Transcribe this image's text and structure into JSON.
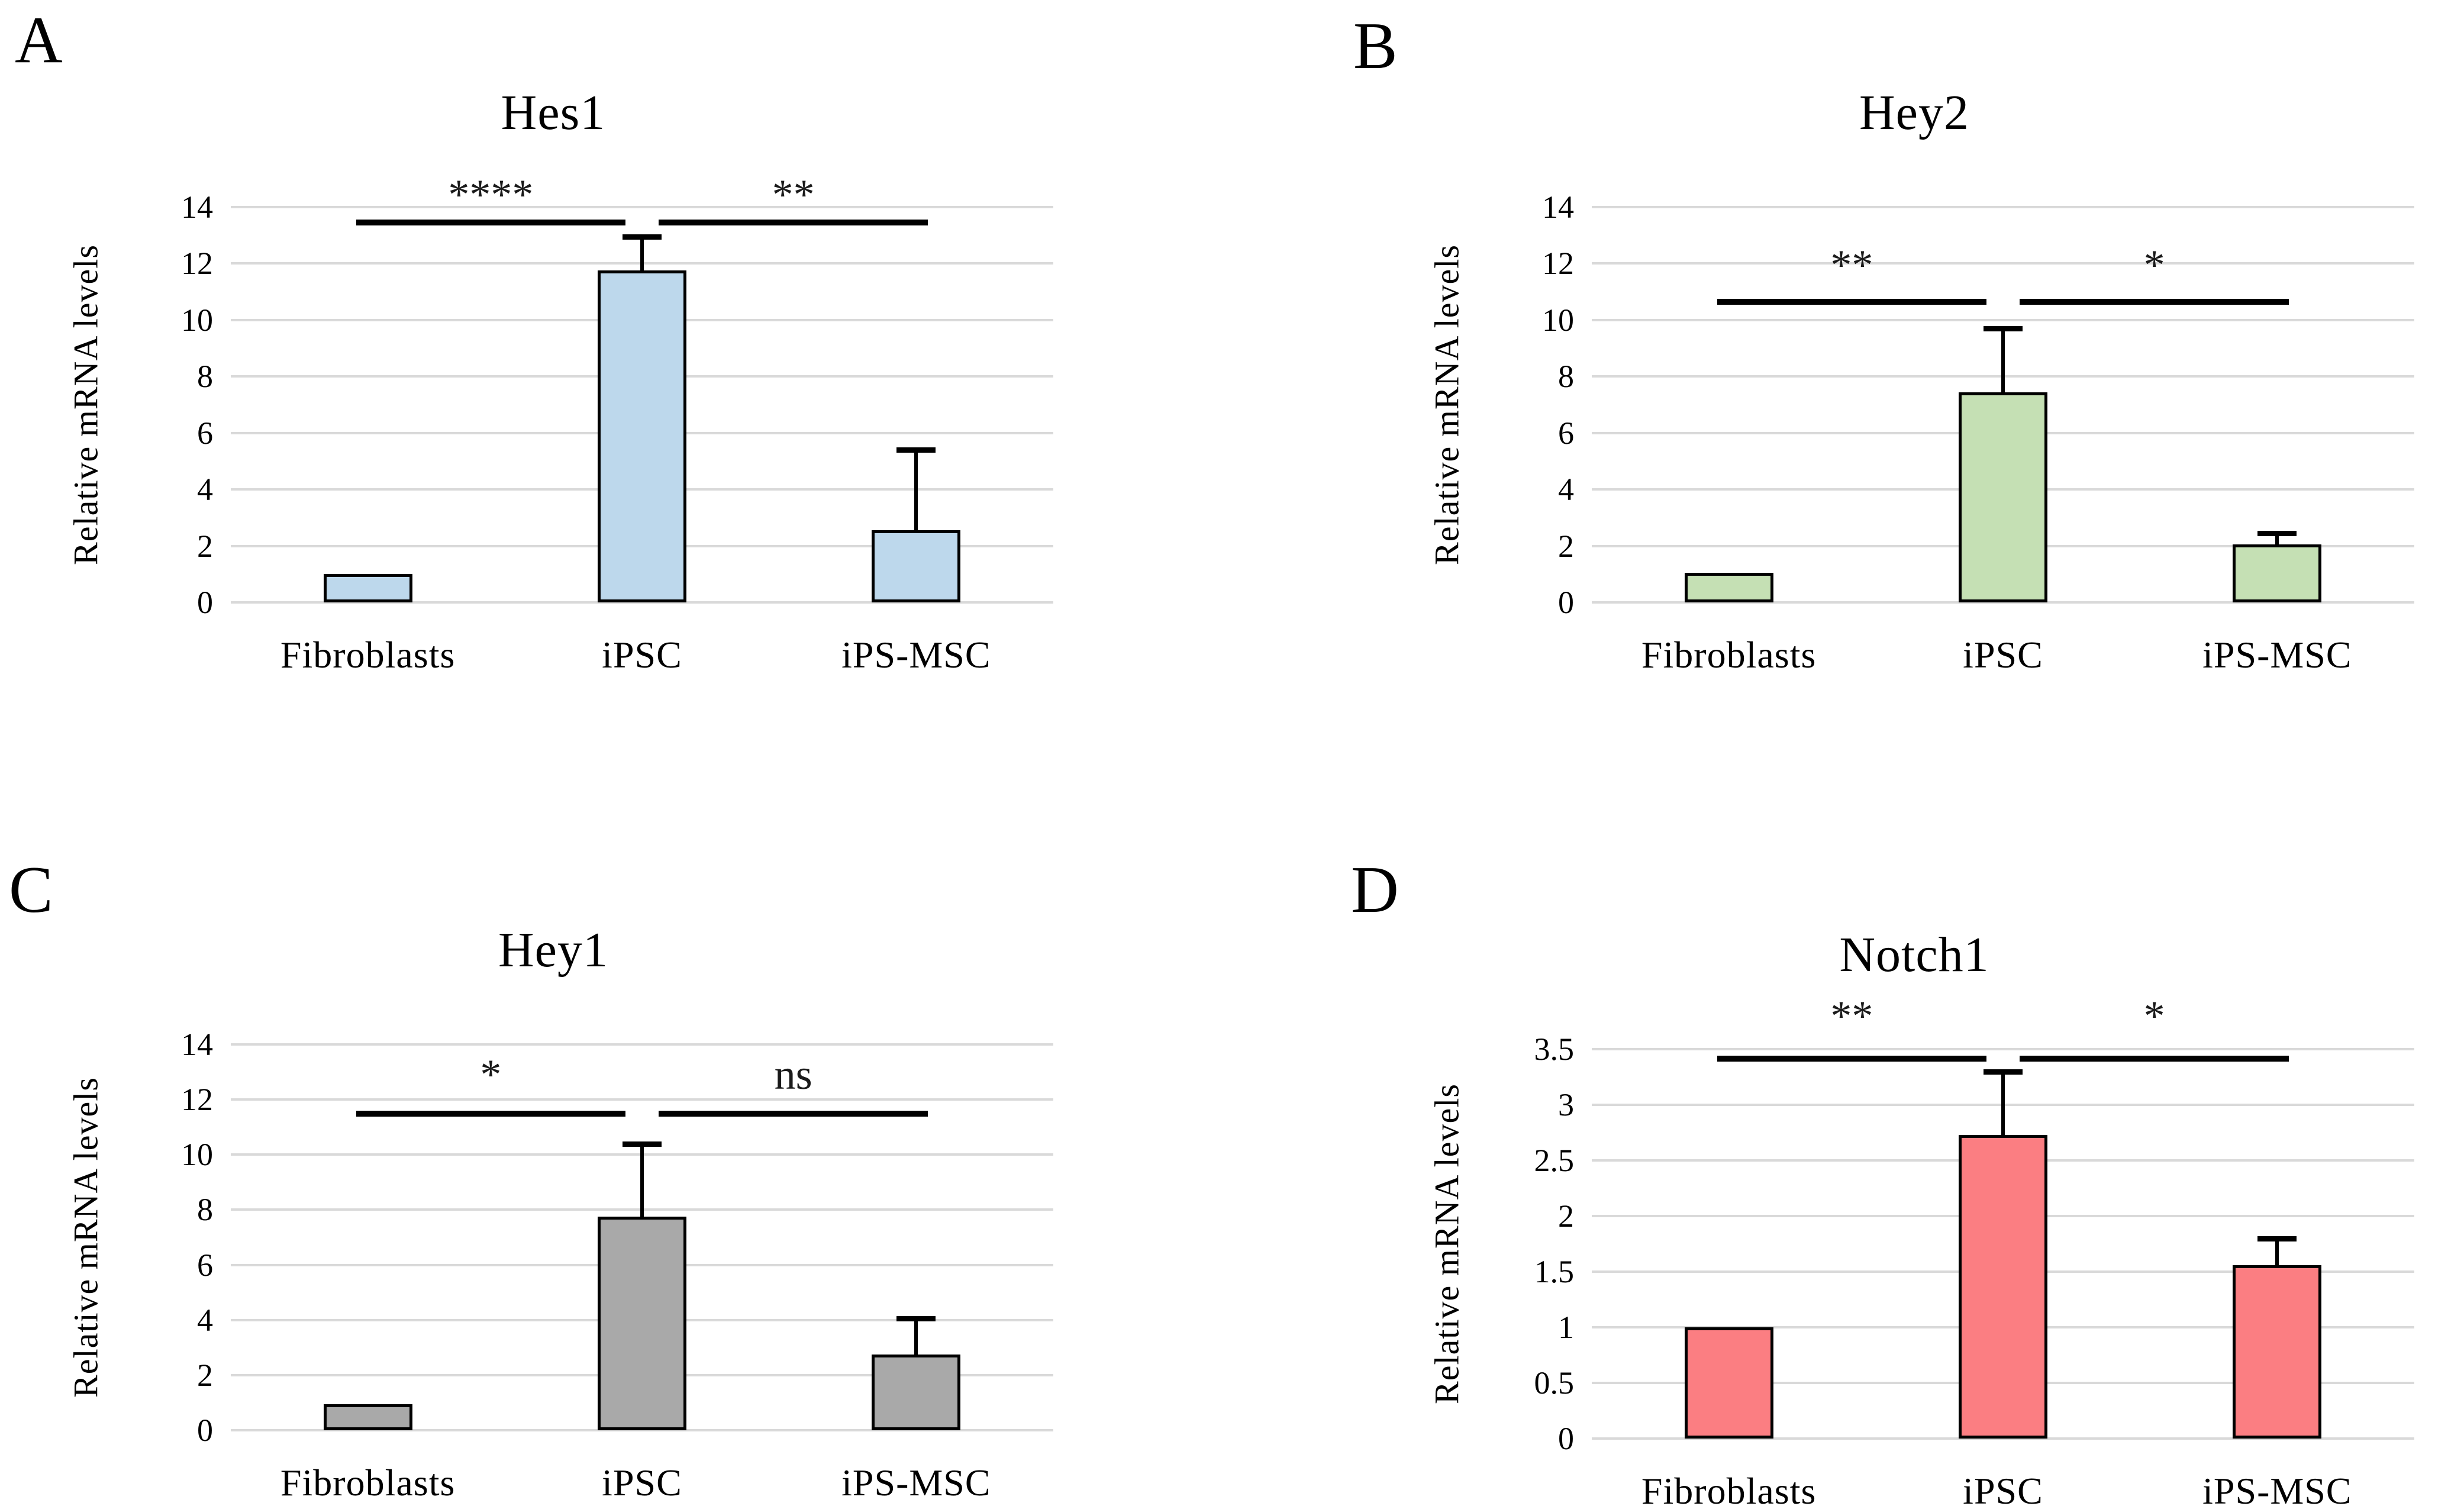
{
  "figure": {
    "description_visible_text_only": "Four qPCR bar chart panels",
    "background_color": "#FFFFFF",
    "gridline_color": "#D9D9D9",
    "error_bar_color": "#000000"
  },
  "chart_data": [
    {
      "type": "bar",
      "panel_letter": "A",
      "title": "Hes1",
      "ylabel": "Relative mRNA levels",
      "categories": [
        "Fibroblasts",
        "iPSC",
        "iPS-MSC"
      ],
      "values": [
        1.0,
        11.75,
        2.55
      ],
      "errors_plus": [
        0,
        1.2,
        2.85
      ],
      "ylim": [
        0,
        14
      ],
      "ytick_step": 2,
      "ytick_labels": [
        "0",
        "2",
        "4",
        "6",
        "8",
        "10",
        "12",
        "14"
      ],
      "grid": "horizontal",
      "legend": "none",
      "bar_color": "#BDD8EC",
      "bar_border_color": "#000000",
      "significance": [
        {
          "pair": [
            "Fibroblasts",
            "iPSC"
          ],
          "label": "****"
        },
        {
          "pair": [
            "iPSC",
            "iPS-MSC"
          ],
          "label": "**"
        }
      ],
      "sig_line_value": 13.55,
      "sig_label_value": 14.45
    },
    {
      "type": "bar",
      "panel_letter": "B",
      "title": "Hey2",
      "ylabel": "Relative mRNA levels",
      "categories": [
        "Fibroblasts",
        "iPSC",
        "iPS-MSC"
      ],
      "values": [
        1.05,
        7.45,
        2.05
      ],
      "errors_plus": [
        0,
        2.25,
        0.4
      ],
      "ylim": [
        0,
        14
      ],
      "ytick_step": 2,
      "ytick_labels": [
        "0",
        "2",
        "4",
        "6",
        "8",
        "10",
        "12",
        "14"
      ],
      "grid": "horizontal",
      "legend": "none",
      "bar_color": "#C5E0B4",
      "bar_border_color": "#000000",
      "significance": [
        {
          "pair": [
            "Fibroblasts",
            "iPSC"
          ],
          "label": "**"
        },
        {
          "pair": [
            "iPSC",
            "iPS-MSC"
          ],
          "label": "*"
        }
      ],
      "sig_line_value": 10.75,
      "sig_label_value": 11.95
    },
    {
      "type": "bar",
      "panel_letter": "C",
      "title": "Hey1",
      "ylabel": "Relative mRNA levels",
      "categories": [
        "Fibroblasts",
        "iPSC",
        "iPS-MSC"
      ],
      "values": [
        0.95,
        7.75,
        2.75
      ],
      "errors_plus": [
        0,
        2.65,
        1.3
      ],
      "ylim": [
        0,
        14
      ],
      "ytick_step": 2,
      "ytick_labels": [
        "0",
        "2",
        "4",
        "6",
        "8",
        "10",
        "12",
        "14"
      ],
      "grid": "horizontal",
      "legend": "none",
      "bar_color": "#A9A9A9",
      "bar_border_color": "#000000",
      "significance": [
        {
          "pair": [
            "Fibroblasts",
            "iPSC"
          ],
          "label": "*"
        },
        {
          "pair": [
            "iPSC",
            "iPS-MSC"
          ],
          "label": "ns"
        }
      ],
      "sig_line_value": 11.6,
      "sig_label_value": 12.9
    },
    {
      "type": "bar",
      "panel_letter": "D",
      "title": "Notch1",
      "ylabel": "Relative mRNA levels",
      "categories": [
        "Fibroblasts",
        "iPSC",
        "iPS-MSC"
      ],
      "values": [
        1.0,
        2.73,
        1.56
      ],
      "errors_plus": [
        0,
        0.57,
        0.24
      ],
      "ylim": [
        0,
        3.5
      ],
      "ytick_step": 0.5,
      "ytick_labels": [
        "0",
        "0.5",
        "1",
        "1.5",
        "2",
        "2.5",
        "3",
        "3.5"
      ],
      "grid": "horizontal",
      "legend": "none",
      "bar_color": "#FB7E82",
      "bar_border_color": "#000000",
      "significance": [
        {
          "pair": [
            "Fibroblasts",
            "iPSC"
          ],
          "label": "**"
        },
        {
          "pair": [
            "iPSC",
            "iPS-MSC"
          ],
          "label": "*"
        }
      ],
      "sig_line_value": 3.44,
      "sig_label_value": 3.8
    }
  ]
}
